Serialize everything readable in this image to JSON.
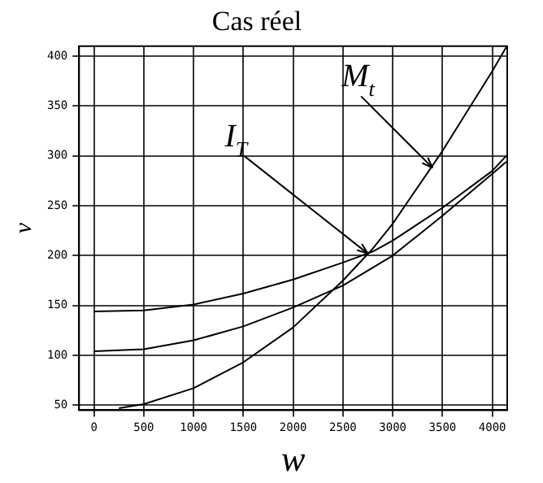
{
  "chart_data": {
    "type": "line",
    "title": "Cas réel",
    "xlabel": "w",
    "ylabel": "v",
    "xlim": [
      -150,
      4150
    ],
    "xticks": [
      0,
      500,
      1000,
      1500,
      2000,
      2500,
      3000,
      3500,
      4000
    ],
    "ylim": [
      45,
      410
    ],
    "yticks": [
      50,
      100,
      150,
      200,
      250,
      300,
      350,
      400
    ],
    "grid": true,
    "line_style": "solid",
    "marker": "none",
    "legend": false,
    "series": [
      {
        "color": "#000000",
        "x": [
          0,
          500,
          1000,
          1500,
          2000,
          2500,
          2800,
          3000,
          3500,
          4000,
          4140
        ],
        "values": [
          144,
          145,
          151,
          162,
          176,
          193,
          204,
          215,
          248,
          285,
          300
        ]
      },
      {
        "color": "#000000",
        "x": [
          0,
          500,
          1000,
          1500,
          2000,
          2500,
          2800,
          3000,
          3500,
          4000,
          4140
        ],
        "values": [
          104,
          106,
          115,
          129,
          148,
          170,
          188,
          200,
          240,
          282,
          294
        ]
      },
      {
        "color": "#000000",
        "x": [
          250,
          500,
          1000,
          1500,
          2000,
          2500,
          2800,
          3000,
          3500,
          4000,
          4140
        ],
        "values": [
          47,
          51,
          67,
          93,
          128,
          175,
          207,
          232,
          305,
          385,
          409
        ]
      }
    ],
    "annotations": [
      {
        "text": "M$_{t}$",
        "x": 3400,
        "y": 288
      },
      {
        "text": "I$_{T}$",
        "x": 2750,
        "y": 202
      }
    ]
  }
}
